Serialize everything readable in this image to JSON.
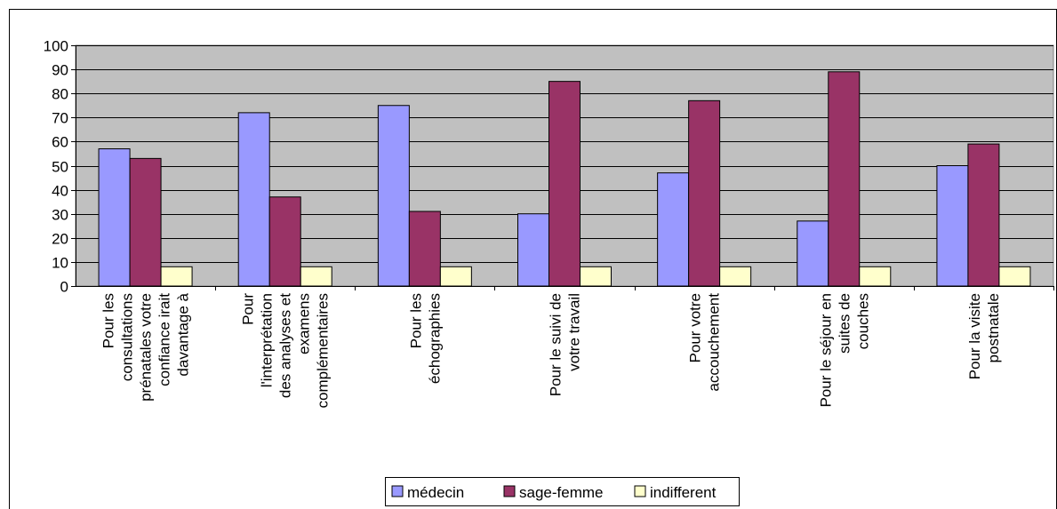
{
  "chart_data": {
    "type": "bar",
    "title": "",
    "xlabel": "",
    "ylabel": "",
    "ylim": [
      0,
      100
    ],
    "yticks": [
      0,
      10,
      20,
      30,
      40,
      50,
      60,
      70,
      80,
      90,
      100
    ],
    "grid": true,
    "legend_position": "bottom",
    "plot_background": "#c0c0c0",
    "categories": [
      "Pour les consultations prénatales votre confiance irait davantage à",
      "Pour l'interprétation des analyses et examens complémentaires",
      "Pour les échographies",
      "Pour le suivi de votre travail",
      "Pour votre accouchement",
      "Pour le séjour en suites de couches",
      "Pour la visite postnatale"
    ],
    "category_label_lines": [
      [
        "Pour les",
        "consultations",
        "prénatales votre",
        "confiance irait",
        "davantage à"
      ],
      [
        "Pour",
        "l'interprétation",
        "des analyses et",
        "examens",
        "complémentaires"
      ],
      [
        "Pour les",
        "échographies"
      ],
      [
        "Pour le suivi de",
        "votre travail"
      ],
      [
        "Pour votre",
        "accouchement"
      ],
      [
        "Pour le séjour en",
        "suites de",
        "couches"
      ],
      [
        "Pour la visite",
        "postnatale"
      ]
    ],
    "series": [
      {
        "name": "médecin",
        "color": "#9999ff",
        "values": [
          57,
          72,
          75,
          30,
          47,
          27,
          50
        ]
      },
      {
        "name": "sage-femme",
        "color": "#993366",
        "values": [
          53,
          37,
          31,
          85,
          77,
          89,
          59
        ]
      },
      {
        "name": "indifferent",
        "color": "#ffffcc",
        "values": [
          8,
          8,
          8,
          8,
          8,
          8,
          8
        ]
      }
    ]
  }
}
